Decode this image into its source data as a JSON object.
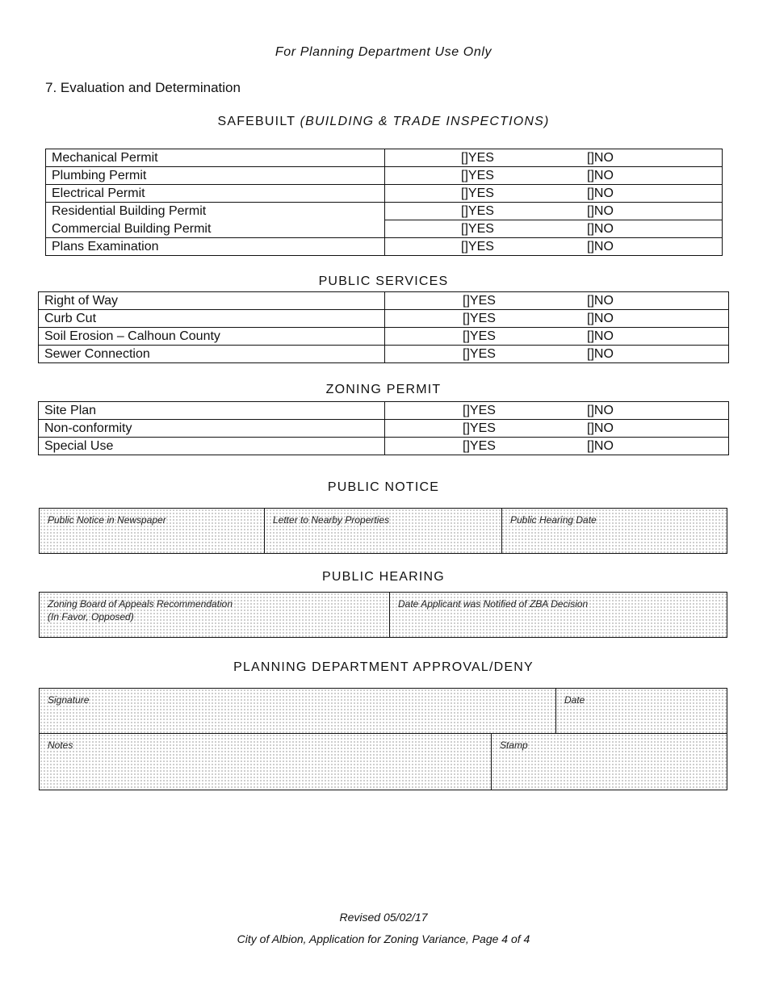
{
  "header": {
    "use_only": "For Planning Department Use Only",
    "section": "7. Evaluation and Determination"
  },
  "options": {
    "yes": "[]YES",
    "no": "[]NO"
  },
  "safebuilt": {
    "title": "SAFEBUILT",
    "subtitle": "(BUILDING & TRADE INSPECTIONS)",
    "rows": [
      "Mechanical Permit",
      "Plumbing Permit",
      "Electrical Permit",
      "Residential Building Permit",
      "Commercial Building Permit",
      "Plans Examination"
    ]
  },
  "public_services": {
    "title": "PUBLIC SERVICES",
    "rows": [
      "Right of Way",
      "Curb Cut",
      "Soil Erosion – Calhoun County",
      "Sewer Connection"
    ]
  },
  "zoning": {
    "title": "ZONING PERMIT",
    "rows": [
      "Site Plan",
      "Non-conformity",
      "Special Use"
    ]
  },
  "public_notice": {
    "title": "PUBLIC NOTICE",
    "fields": [
      "Public Notice in Newspaper",
      "Letter to Nearby Properties",
      "Public Hearing Date"
    ]
  },
  "public_hearing": {
    "title": "PUBLIC HEARING",
    "fields": [
      "Zoning Board of Appeals  Recommendation",
      "(In Favor, Opposed)",
      "Date Applicant was Notified of ZBA Decision"
    ]
  },
  "approval": {
    "title": "PLANNING DEPARTMENT APPROVAL/DENY",
    "fields": [
      "Signature",
      "Date",
      "Notes",
      "Stamp"
    ]
  },
  "footer": {
    "revised": "Revised 05/02/17",
    "page": "City of Albion, Application for Zoning Variance, Page 4 of 4"
  }
}
